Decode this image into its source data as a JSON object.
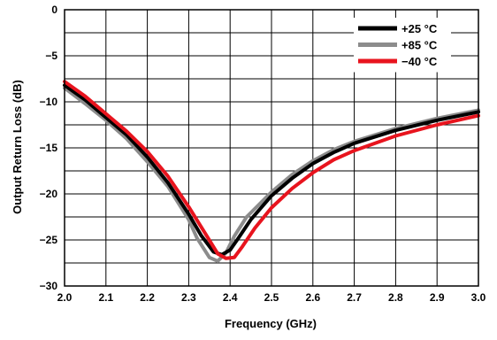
{
  "chart_data": {
    "type": "line",
    "title": "",
    "xlabel": "Frequency (GHz)",
    "ylabel": "Output Return Loss (dB)",
    "xlim": [
      2.0,
      3.0
    ],
    "ylim": [
      -30,
      0
    ],
    "xticks": [
      2.0,
      2.1,
      2.2,
      2.3,
      2.4,
      2.5,
      2.6,
      2.7,
      2.8,
      2.9,
      3.0
    ],
    "xtick_labels": [
      "2.0",
      "2.1",
      "2.2",
      "2.3",
      "2.4",
      "2.5",
      "2.6",
      "2.7",
      "2.8",
      "2.9",
      "3.0"
    ],
    "yticks": [
      0,
      -5,
      -10,
      -15,
      -20,
      -25,
      -30
    ],
    "ytick_labels": [
      "0",
      "−5",
      "−10",
      "−15",
      "−20",
      "−25",
      "−30"
    ],
    "grid": true,
    "legend_position": "top-right",
    "series": [
      {
        "name": "+25 °C",
        "color": "#000000",
        "x": [
          2.0,
          2.05,
          2.1,
          2.15,
          2.2,
          2.25,
          2.3,
          2.33,
          2.36,
          2.38,
          2.4,
          2.42,
          2.45,
          2.5,
          2.55,
          2.6,
          2.65,
          2.7,
          2.8,
          2.9,
          3.0
        ],
        "y": [
          -8.2,
          -9.8,
          -11.7,
          -13.6,
          -16.0,
          -18.8,
          -22.2,
          -24.5,
          -26.3,
          -26.6,
          -26.1,
          -24.8,
          -22.8,
          -20.2,
          -18.3,
          -16.7,
          -15.5,
          -14.5,
          -13.1,
          -12.0,
          -11.1
        ]
      },
      {
        "name": "+85 °C",
        "color": "#8c8c8c",
        "x": [
          2.0,
          2.05,
          2.1,
          2.15,
          2.2,
          2.25,
          2.3,
          2.32,
          2.35,
          2.37,
          2.39,
          2.41,
          2.44,
          2.5,
          2.55,
          2.6,
          2.65,
          2.7,
          2.8,
          2.9,
          3.0
        ],
        "y": [
          -8.5,
          -10.2,
          -12.0,
          -14.0,
          -16.5,
          -19.2,
          -22.8,
          -24.8,
          -26.9,
          -27.3,
          -26.4,
          -24.6,
          -22.5,
          -19.8,
          -17.9,
          -16.4,
          -15.2,
          -14.3,
          -12.9,
          -11.8,
          -10.9
        ]
      },
      {
        "name": "−40 °C",
        "color": "#e8141e",
        "x": [
          2.0,
          2.05,
          2.1,
          2.15,
          2.2,
          2.25,
          2.3,
          2.34,
          2.37,
          2.39,
          2.41,
          2.43,
          2.46,
          2.5,
          2.55,
          2.6,
          2.65,
          2.7,
          2.8,
          2.9,
          3.0
        ],
        "y": [
          -7.8,
          -9.4,
          -11.3,
          -13.2,
          -15.4,
          -18.1,
          -21.4,
          -24.3,
          -26.5,
          -27.0,
          -26.9,
          -25.7,
          -23.7,
          -21.5,
          -19.4,
          -17.7,
          -16.3,
          -15.3,
          -13.7,
          -12.5,
          -11.5
        ]
      }
    ]
  }
}
